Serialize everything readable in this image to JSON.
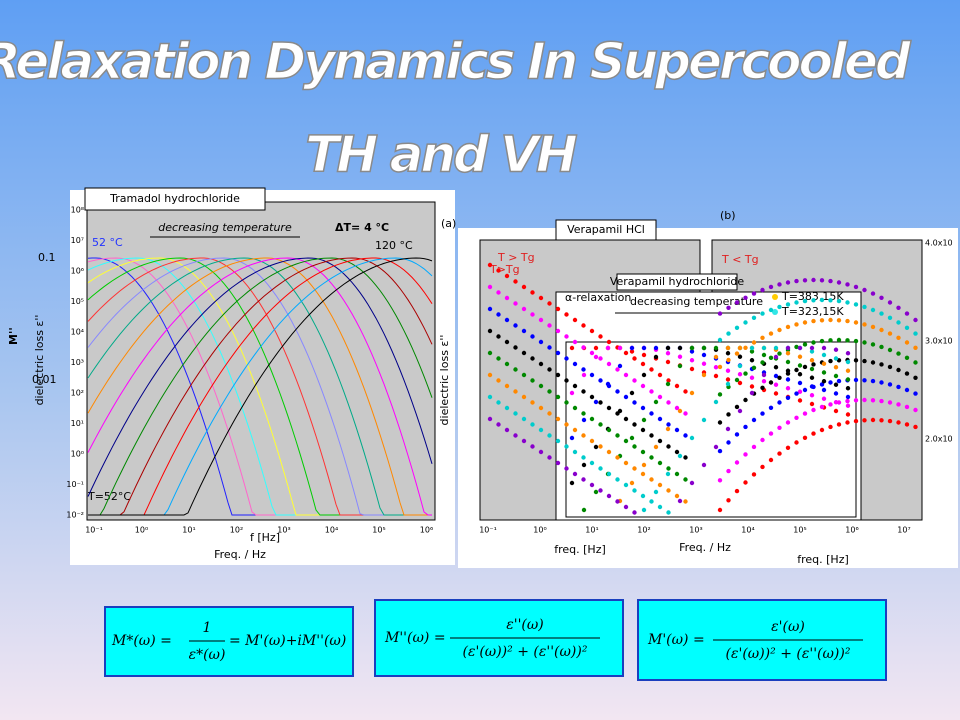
{
  "title": {
    "line1": "Relaxation  Dynamics  In Supercooled",
    "line2": "TH and VH"
  },
  "panel_a": {
    "name": "Tramadol hydrochloride",
    "tag": "(a)",
    "arrow_text": "decreasing temperature",
    "delta": "ΔT= 4 °C",
    "t_start": "52 °C",
    "t_end": "120 °C",
    "y_label": "dielectric loss ε''",
    "x_label": "Freq. / Hz",
    "overlay_y_label": "M''",
    "overlay_x_label": "f [Hz]",
    "overlay_tick_1": "0.1",
    "overlay_tick_2": "0.01",
    "overlay_temp": "T=52°C",
    "yticks": [
      "10⁸",
      "10⁷",
      "10⁶",
      "10⁵",
      "10⁴",
      "10³",
      "10²",
      "10¹",
      "10⁰",
      "10⁻¹",
      "10⁻²"
    ],
    "xticks": [
      "10⁻¹",
      "10⁰",
      "10¹",
      "10²",
      "10³",
      "10⁴",
      "10⁵",
      "10⁶"
    ]
  },
  "panel_b": {
    "name": "Verapamil HCl",
    "tag": "(b)",
    "above": "T > Tg",
    "below": "T < Tg",
    "above_small": "T>Tg",
    "y_label": "dielectric loss ε''",
    "x_label_left": "freq. [Hz]",
    "x_label_right": "freq. [Hz]",
    "right_ticks": [
      "4.0x10",
      "3.0x10",
      "2.0x10"
    ],
    "xticks": [
      "10⁻¹",
      "10⁰",
      "10¹",
      "10²",
      "10³",
      "10⁴",
      "10⁵",
      "10⁶",
      "10⁷"
    ]
  },
  "inset": {
    "name": "Verapamil hydrochloride",
    "peak_label": "α-relaxation",
    "arrow_text": "decreasing temperature",
    "legend": [
      "T=383,15K",
      "T=323,15K"
    ],
    "x_label": "Freq. / Hz"
  },
  "formulas": [
    {
      "lhs": "M*(ω) =",
      "num": "1",
      "den": "ε*(ω)",
      "rhs": "= M'(ω)+iM''(ω)"
    },
    {
      "lhs": "M''(ω) =",
      "num": "ε''(ω)",
      "den": "(ε'(ω))² + (ε''(ω))²"
    },
    {
      "lhs": "M'(ω) =",
      "num": "ε'(ω)",
      "den": "(ε'(ω))² + (ε''(ω))²"
    }
  ]
}
